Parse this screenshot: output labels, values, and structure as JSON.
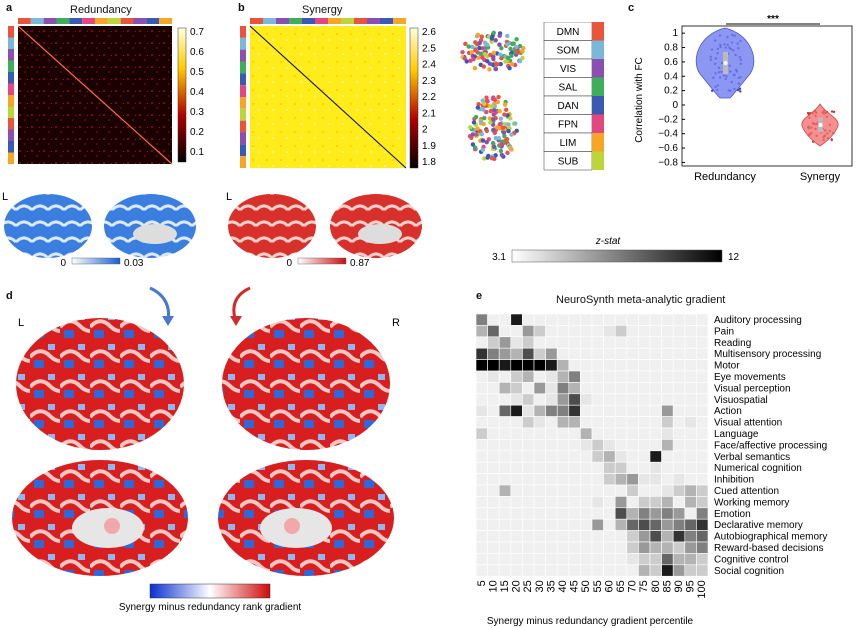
{
  "panels": {
    "a": {
      "letter": "a",
      "title": "Redundancy",
      "colorbar_ticks": [
        "0.7",
        "0.6",
        "0.5",
        "0.4",
        "0.3",
        "0.2",
        "0.1"
      ]
    },
    "b": {
      "letter": "b",
      "title": "Synergy",
      "colorbar_ticks": [
        "2.6",
        "2.5",
        "2.4",
        "2.3",
        "2.2",
        "2.1",
        "2",
        "1.9",
        "1.8"
      ]
    },
    "c": {
      "letter": "c",
      "ylabel": "Correlation with FC",
      "significance": "***",
      "yticks": [
        "1",
        "0.8",
        "0.6",
        "0.4",
        "0.2",
        "0",
        "−0.2",
        "−0.4",
        "−0.6",
        "−0.8"
      ],
      "categories": [
        "Redundancy",
        "Synergy"
      ]
    },
    "d": {
      "letter": "d",
      "left_label": "L",
      "right_label": "R",
      "gradient_label": "Synergy minus redundancy rank gradient"
    },
    "e": {
      "letter": "e",
      "title": "NeuroSynth meta-analytic gradient",
      "xlabel": "Synergy minus redundancy gradient percentile",
      "xticks": [
        "5",
        "10",
        "15",
        "20",
        "25",
        "30",
        "35",
        "40",
        "45",
        "50",
        "55",
        "60",
        "65",
        "70",
        "75",
        "80",
        "85",
        "90",
        "95",
        "100"
      ],
      "terms": [
        "Auditory processing",
        "Pain",
        "Reading",
        "Multisensory processing",
        "Motor",
        "Eye movements",
        "Visual perception",
        "Visuospatial",
        "Action",
        "Visual attention",
        "Language",
        "Face/affective processing",
        "Verbal semantics",
        "Numerical cognition",
        "Inhibition",
        "Cued attention",
        "Working memory",
        "Emotion",
        "Declarative memory",
        "Autobiographical memory",
        "Reward-based decisions",
        "Cognitive control",
        "Social cognition"
      ]
    }
  },
  "networks": [
    "DMN",
    "SOM",
    "VIS",
    "SAL",
    "DAN",
    "FPN",
    "LIM",
    "SUB"
  ],
  "network_colors": [
    "#e8553a",
    "#7ab8d9",
    "#8a4fb0",
    "#3fae5a",
    "#3a59b0",
    "#e2477f",
    "#f5a623",
    "#bcd63a"
  ],
  "brain_row": {
    "redundancy_label": "L",
    "redundancy_min": "0",
    "redundancy_max": "0.03",
    "synergy_label": "L",
    "synergy_min": "0",
    "synergy_max": "0.87",
    "zstat_label": "z-stat",
    "zstat_min": "3.1",
    "zstat_max": "12"
  },
  "chart_data": [
    {
      "type": "heatmap",
      "title": "Redundancy",
      "colorbar_range": [
        0.05,
        0.75
      ]
    },
    {
      "type": "heatmap",
      "title": "Synergy",
      "colorbar_range": [
        1.75,
        2.65
      ]
    },
    {
      "type": "violin",
      "ylabel": "Correlation with FC",
      "ylim": [
        -0.85,
        1.1
      ],
      "categories": [
        "Redundancy",
        "Synergy"
      ],
      "medians": [
        0.6,
        -0.3
      ]
    },
    {
      "type": "heatmap",
      "title": "NeuroSynth meta-analytic gradient",
      "xlabel": "Synergy minus redundancy gradient percentile",
      "rows": [
        [
          5,
          0,
          0,
          9,
          0,
          0,
          0,
          0,
          0,
          0,
          0,
          0,
          0,
          0,
          0,
          0,
          0,
          0,
          0,
          0
        ],
        [
          3,
          6,
          0,
          0,
          4,
          2,
          0,
          0,
          0,
          0,
          0,
          1,
          2,
          0,
          0,
          0,
          0,
          0,
          0,
          0
        ],
        [
          0,
          2,
          4,
          1,
          2,
          0,
          0,
          0,
          0,
          0,
          0,
          0,
          0,
          0,
          0,
          0,
          0,
          0,
          0,
          0
        ],
        [
          8,
          5,
          4,
          3,
          7,
          2,
          4,
          0,
          0,
          0,
          0,
          0,
          0,
          0,
          0,
          0,
          0,
          0,
          0,
          0
        ],
        [
          10,
          10,
          9,
          10,
          10,
          10,
          9,
          3,
          0,
          0,
          0,
          0,
          0,
          0,
          0,
          0,
          0,
          0,
          0,
          0
        ],
        [
          0,
          1,
          0,
          2,
          3,
          0,
          1,
          3,
          5,
          0,
          0,
          0,
          0,
          0,
          0,
          0,
          0,
          0,
          0,
          0
        ],
        [
          0,
          0,
          3,
          2,
          0,
          4,
          1,
          5,
          3,
          0,
          0,
          0,
          0,
          0,
          0,
          0,
          0,
          0,
          0,
          0
        ],
        [
          0,
          0,
          0,
          1,
          2,
          0,
          1,
          4,
          7,
          1,
          0,
          0,
          0,
          0,
          0,
          0,
          0,
          0,
          0,
          0
        ],
        [
          1,
          0,
          6,
          9,
          1,
          3,
          5,
          5,
          8,
          0,
          0,
          0,
          0,
          0,
          0,
          0,
          4,
          0,
          0,
          0
        ],
        [
          0,
          0,
          0,
          0,
          2,
          1,
          0,
          3,
          3,
          0,
          0,
          0,
          0,
          0,
          0,
          0,
          2,
          0,
          1,
          0
        ],
        [
          2,
          0,
          0,
          0,
          0,
          0,
          0,
          0,
          0,
          3,
          0,
          0,
          0,
          0,
          0,
          0,
          1,
          0,
          0,
          0
        ],
        [
          0,
          0,
          0,
          0,
          0,
          0,
          0,
          0,
          0,
          1,
          2,
          1,
          0,
          0,
          0,
          0,
          3,
          0,
          0,
          0
        ],
        [
          0,
          0,
          0,
          0,
          0,
          0,
          0,
          0,
          0,
          0,
          2,
          3,
          1,
          0,
          0,
          9,
          0,
          0,
          0,
          0
        ],
        [
          0,
          0,
          0,
          0,
          0,
          0,
          0,
          0,
          0,
          0,
          0,
          2,
          2,
          0,
          0,
          1,
          0,
          0,
          0,
          0
        ],
        [
          0,
          0,
          0,
          0,
          0,
          0,
          0,
          0,
          0,
          0,
          0,
          2,
          3,
          4,
          1,
          1,
          0,
          1,
          0,
          0
        ],
        [
          0,
          0,
          3,
          0,
          0,
          0,
          0,
          0,
          0,
          0,
          0,
          0,
          0,
          2,
          0,
          0,
          1,
          2,
          3,
          2
        ],
        [
          0,
          0,
          0,
          0,
          0,
          0,
          0,
          0,
          0,
          0,
          1,
          0,
          4,
          0,
          2,
          2,
          3,
          0,
          3,
          2
        ],
        [
          0,
          0,
          0,
          0,
          0,
          0,
          0,
          0,
          0,
          0,
          0,
          0,
          7,
          3,
          5,
          4,
          5,
          4,
          0,
          5
        ],
        [
          0,
          0,
          0,
          0,
          0,
          0,
          0,
          0,
          0,
          0,
          4,
          0,
          3,
          6,
          7,
          6,
          4,
          5,
          6,
          8
        ],
        [
          0,
          0,
          0,
          0,
          0,
          0,
          0,
          0,
          0,
          0,
          0,
          0,
          0,
          2,
          4,
          7,
          3,
          8,
          5,
          6
        ],
        [
          0,
          0,
          0,
          0,
          0,
          0,
          0,
          0,
          0,
          0,
          0,
          0,
          0,
          2,
          4,
          3,
          3,
          2,
          4,
          5
        ],
        [
          0,
          0,
          0,
          0,
          0,
          0,
          0,
          0,
          0,
          0,
          0,
          0,
          0,
          1,
          2,
          2,
          6,
          3,
          3,
          2
        ],
        [
          0,
          0,
          0,
          0,
          0,
          0,
          0,
          0,
          0,
          0,
          0,
          0,
          0,
          0,
          3,
          2,
          9,
          4,
          2,
          2
        ]
      ]
    }
  ]
}
